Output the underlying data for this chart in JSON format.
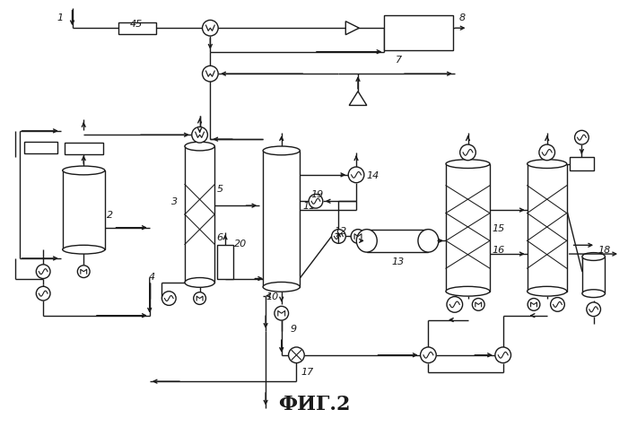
{
  "title": "ФИГ.2",
  "title_fontsize": 16,
  "background_color": "#ffffff",
  "line_color": "#1a1a1a",
  "line_width": 1.0
}
